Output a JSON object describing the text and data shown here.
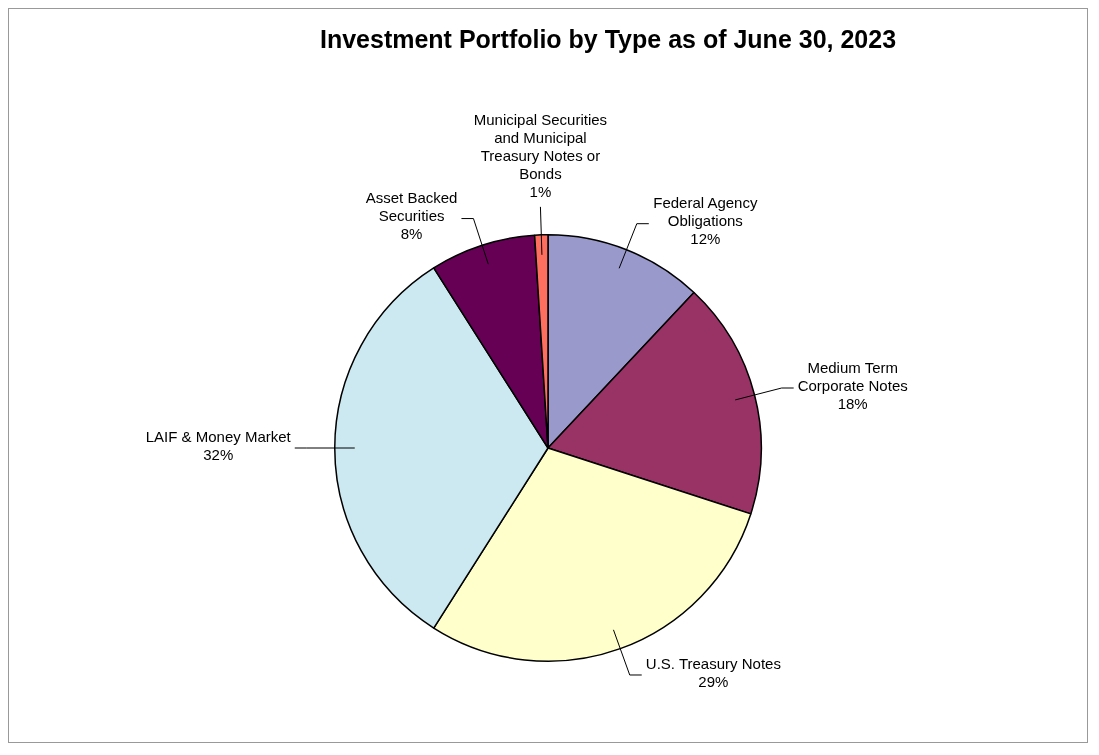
{
  "chart_data": {
    "type": "pie",
    "title": "Investment Portfolio by Type as of June 30, 2023",
    "categories": [
      "Federal Agency Obligations",
      "Medium Term Corporate Notes",
      "U.S. Treasury Notes",
      "LAIF & Money Market",
      "Asset Backed Securities",
      "Municipal Securities and Municipal Treasury Notes or Bonds"
    ],
    "values": [
      12,
      18,
      29,
      32,
      8,
      1
    ],
    "value_labels": [
      "12%",
      "18%",
      "29%",
      "32%",
      "8%",
      "1%"
    ],
    "colors": [
      "#9999cc",
      "#993366",
      "#ffffcc",
      "#cce9f2",
      "#660055",
      "#ff6f5f"
    ],
    "legend": false
  }
}
